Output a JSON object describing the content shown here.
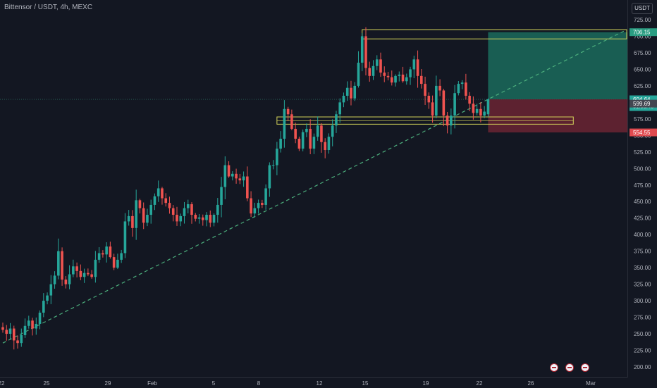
{
  "header": {
    "title": "Bittensor / USDT, 4h, MEXC",
    "currency": "USDT"
  },
  "colors": {
    "background": "#131722",
    "up": "#26a69a",
    "down": "#ef5350",
    "grid": "#1e222d",
    "axis_text": "#b2b5be",
    "trendline": "#4caf7d",
    "zone_border": "#d4d45a",
    "target_fill": "#1b6b5c",
    "stop_fill": "#6b2533"
  },
  "chart_data": {
    "type": "candlestick",
    "title": "Bittensor / USDT, 4h, MEXC",
    "y_range": [
      195,
      735
    ],
    "y_ticks": [
      725,
      700,
      675,
      650,
      625,
      600,
      575,
      550,
      525,
      500,
      475,
      450,
      425,
      400,
      375,
      350,
      325,
      300,
      275,
      250,
      225,
      200
    ],
    "y_tick_labels": [
      "725.00",
      "700.00",
      "675.00",
      "650.00",
      "625.00",
      "600.00",
      "575.00",
      "550.00",
      "525.00",
      "500.00",
      "475.00",
      "450.00",
      "425.00",
      "400.00",
      "375.00",
      "350.00",
      "325.00",
      "300.00",
      "275.00",
      "250.00",
      "225.00",
      "200.00"
    ],
    "x_ticks": [
      "22",
      "25",
      "29",
      "Feb",
      "5",
      "8",
      "12",
      "15",
      "19",
      "22",
      "26",
      "Mar"
    ],
    "close_path": [
      [
        0,
        256
      ],
      [
        1,
        250
      ],
      [
        2,
        258
      ],
      [
        3,
        240
      ],
      [
        4,
        236
      ],
      [
        5,
        248
      ],
      [
        6,
        262
      ],
      [
        7,
        270
      ],
      [
        8,
        258
      ],
      [
        9,
        265
      ],
      [
        10,
        282
      ],
      [
        11,
        300
      ],
      [
        12,
        308
      ],
      [
        13,
        325
      ],
      [
        14,
        338
      ],
      [
        15,
        375
      ],
      [
        16,
        332
      ],
      [
        17,
        325
      ],
      [
        18,
        340
      ],
      [
        19,
        352
      ],
      [
        20,
        345
      ],
      [
        21,
        336
      ],
      [
        22,
        342
      ],
      [
        23,
        340
      ],
      [
        24,
        336
      ],
      [
        25,
        362
      ],
      [
        26,
        372
      ],
      [
        27,
        370
      ],
      [
        28,
        382
      ],
      [
        29,
        366
      ],
      [
        30,
        350
      ],
      [
        31,
        362
      ],
      [
        32,
        372
      ],
      [
        33,
        420
      ],
      [
        34,
        428
      ],
      [
        35,
        410
      ],
      [
        36,
        452
      ],
      [
        37,
        440
      ],
      [
        38,
        418
      ],
      [
        39,
        430
      ],
      [
        40,
        445
      ],
      [
        41,
        458
      ],
      [
        42,
        470
      ],
      [
        43,
        455
      ],
      [
        44,
        448
      ],
      [
        45,
        440
      ],
      [
        46,
        430
      ],
      [
        47,
        420
      ],
      [
        48,
        428
      ],
      [
        49,
        440
      ],
      [
        50,
        446
      ],
      [
        51,
        430
      ],
      [
        52,
        424
      ],
      [
        53,
        426
      ],
      [
        54,
        422
      ],
      [
        55,
        430
      ],
      [
        56,
        418
      ],
      [
        57,
        430
      ],
      [
        58,
        445
      ],
      [
        59,
        472
      ],
      [
        60,
        505
      ],
      [
        61,
        488
      ],
      [
        62,
        492
      ],
      [
        63,
        485
      ],
      [
        64,
        482
      ],
      [
        65,
        488
      ],
      [
        66,
        455
      ],
      [
        67,
        432
      ],
      [
        68,
        440
      ],
      [
        69,
        448
      ],
      [
        70,
        445
      ],
      [
        71,
        470
      ],
      [
        72,
        505
      ],
      [
        73,
        505
      ],
      [
        74,
        530
      ],
      [
        75,
        545
      ],
      [
        76,
        590
      ],
      [
        77,
        582
      ],
      [
        78,
        560
      ],
      [
        79,
        545
      ],
      [
        80,
        530
      ],
      [
        81,
        555
      ],
      [
        82,
        560
      ],
      [
        83,
        530
      ],
      [
        84,
        548
      ],
      [
        85,
        565
      ],
      [
        86,
        540
      ],
      [
        87,
        528
      ],
      [
        88,
        548
      ],
      [
        89,
        565
      ],
      [
        90,
        582
      ],
      [
        91,
        600
      ],
      [
        92,
        610
      ],
      [
        93,
        622
      ],
      [
        94,
        606
      ],
      [
        95,
        625
      ],
      [
        96,
        660
      ],
      [
        97,
        700
      ],
      [
        98,
        652
      ],
      [
        99,
        640
      ],
      [
        100,
        655
      ],
      [
        101,
        665
      ],
      [
        102,
        645
      ],
      [
        103,
        640
      ],
      [
        104,
        638
      ],
      [
        105,
        630
      ],
      [
        106,
        640
      ],
      [
        107,
        642
      ],
      [
        108,
        632
      ],
      [
        109,
        638
      ],
      [
        110,
        650
      ],
      [
        111,
        665
      ],
      [
        112,
        640
      ],
      [
        113,
        628
      ],
      [
        114,
        610
      ],
      [
        115,
        600
      ],
      [
        116,
        580
      ],
      [
        117,
        625
      ],
      [
        118,
        618
      ],
      [
        119,
        580
      ],
      [
        120,
        565
      ],
      [
        121,
        580
      ],
      [
        122,
        614
      ],
      [
        123,
        628
      ],
      [
        124,
        630
      ],
      [
        125,
        610
      ],
      [
        126,
        598
      ],
      [
        127,
        584
      ],
      [
        128,
        590
      ],
      [
        129,
        580
      ],
      [
        130,
        586
      ],
      [
        131,
        604.64
      ]
    ],
    "trendline": {
      "from": [
        0,
        236
      ],
      "to": [
        131,
        604.64
      ],
      "extends_to_right_edge": true,
      "style": "dashed"
    },
    "zones": [
      {
        "label": "resistance",
        "low": 696,
        "high": 710,
        "from": 97,
        "to": "right-edge"
      },
      {
        "label": "support",
        "low": 567,
        "high": 578,
        "from": 74,
        "to": 154
      }
    ],
    "position": {
      "type": "long",
      "entry": 604.64,
      "target": 706.15,
      "stop": 554.55,
      "from": 131
    },
    "price_labels": [
      {
        "value": 706.15,
        "text": "706.15",
        "kind": "target"
      },
      {
        "value": 604.64,
        "text": "604.64",
        "kind": "last",
        "sub": "01:03:48"
      },
      {
        "value": 599.69,
        "text": "599.69",
        "kind": "prev"
      },
      {
        "value": 554.55,
        "text": "554.55",
        "kind": "stop"
      }
    ],
    "grid": false,
    "legend": "none"
  }
}
